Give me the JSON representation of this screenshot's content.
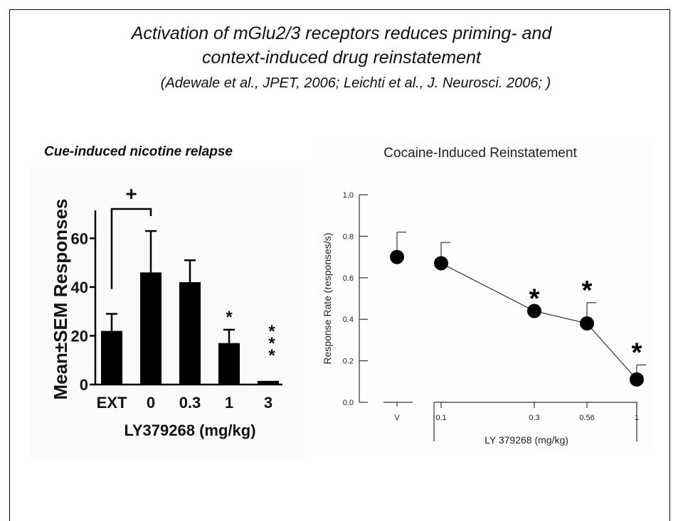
{
  "slide": {
    "title_line1": "Activation of mGlu2/3 receptors reduces priming- and",
    "title_line2": "context-induced drug reinstatement",
    "citation": "(Adewale et al., JPET, 2006; Leichti et al., J. Neurosci. 2006; )",
    "left_panel_label": "Cue-induced nicotine relapse"
  },
  "chart_data": [
    {
      "type": "bar",
      "title": "",
      "categories": [
        "EXT",
        "0",
        "0.3",
        "1",
        "3"
      ],
      "values": [
        22,
        46,
        42,
        17,
        1.5
      ],
      "errors": [
        7,
        17,
        9,
        5.5,
        0
      ],
      "significance": [
        "",
        "",
        "",
        "*",
        "***"
      ],
      "bracket": {
        "from": "EXT",
        "to": "0",
        "label": "+"
      },
      "xlabel": "LY379268 (mg/kg)",
      "ylabel": "Mean±SEM  Responses",
      "yticks": [
        "0",
        "20",
        "40",
        "60"
      ],
      "ylim": [
        0,
        70
      ],
      "bar_color": "#000000"
    },
    {
      "type": "scatter",
      "title": "Cocaine-Induced Reinstatement",
      "xlabel": "LY 379268 (mg/kg)",
      "ylabel": "Response Rate (responses/s)",
      "ylim": [
        0,
        1.0
      ],
      "yticks": [
        "0.0",
        "0.2",
        "0.4",
        "0.6",
        "0.8",
        "1.0"
      ],
      "x_scale": "log",
      "vehicle_point": {
        "label": "V",
        "value": 0.7,
        "error": 0.12
      },
      "x_ticks": [
        "0.1",
        "0.3",
        "0.56",
        "1"
      ],
      "x": [
        0.1,
        0.3,
        0.56,
        1
      ],
      "y": [
        0.67,
        0.44,
        0.38,
        0.11
      ],
      "errors": [
        0.1,
        0,
        0.1,
        0.07
      ],
      "significance": [
        "",
        "*",
        "*",
        "*"
      ],
      "series": [
        {
          "values": [
            0.67,
            0.44,
            0.38,
            0.11
          ]
        }
      ]
    }
  ]
}
